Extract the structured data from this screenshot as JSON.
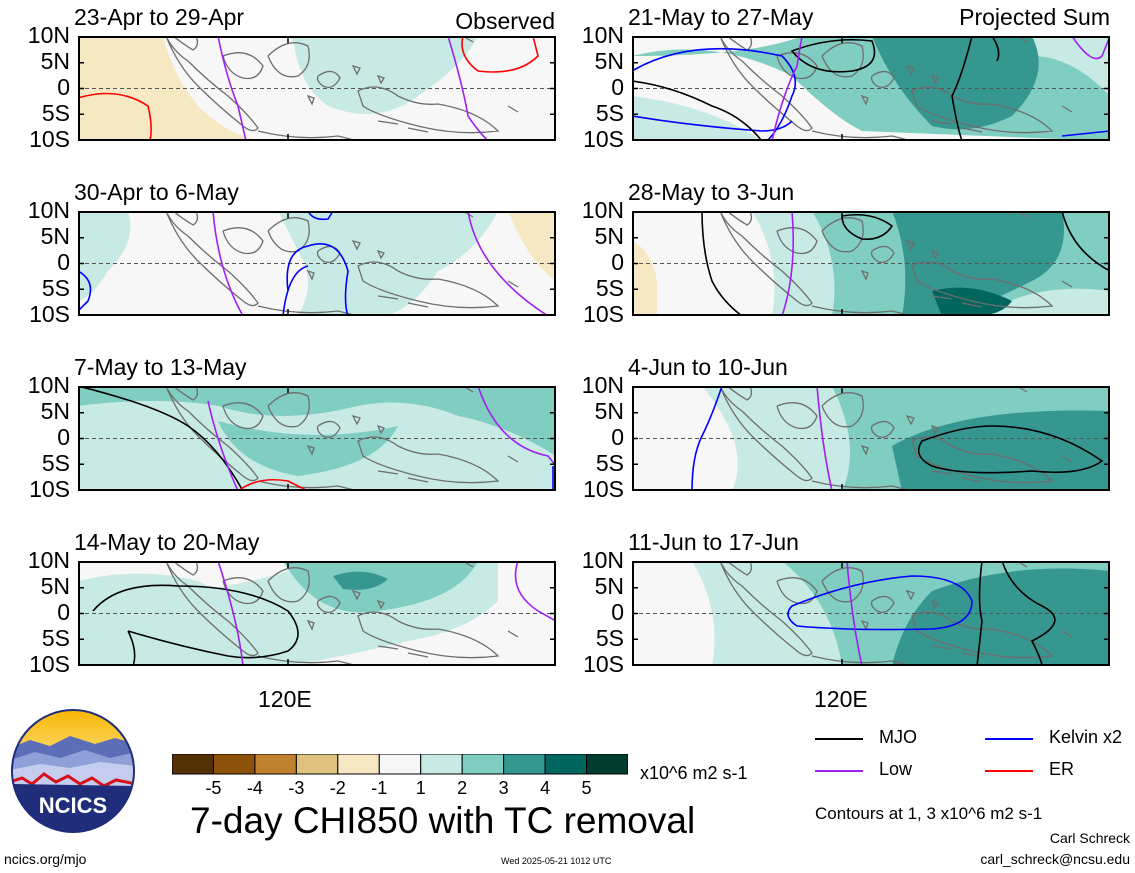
{
  "chart_data": {
    "type": "heatmap",
    "title": "7-day CHI850 with TC removal",
    "units": "x10^6 m2 s-1",
    "y_ticks": [
      "10N",
      "5N",
      "0",
      "5S",
      "10S"
    ],
    "x_tick": "120E",
    "colorbar": {
      "labels": [
        "-5",
        "-4",
        "-3",
        "-2",
        "-1",
        "1",
        "2",
        "3",
        "4",
        "5"
      ],
      "colors": [
        "#543005",
        "#8c510a",
        "#bf812d",
        "#dfc27d",
        "#f6e8c3",
        "#f7f7f7",
        "#c7eae5",
        "#80cdc1",
        "#35978f",
        "#01665e",
        "#003c30"
      ]
    },
    "column_titles": {
      "left": "Observed",
      "right": "Projected Sum"
    },
    "panels": [
      {
        "period": "23-Apr to 29-Apr",
        "col": "left"
      },
      {
        "period": "30-Apr to 6-May",
        "col": "left"
      },
      {
        "period": "7-May to 13-May",
        "col": "left"
      },
      {
        "period": "14-May to 20-May",
        "col": "left"
      },
      {
        "period": "21-May to 27-May",
        "col": "right"
      },
      {
        "period": "28-May to 3-Jun",
        "col": "right"
      },
      {
        "period": "4-Jun to 10-Jun",
        "col": "right"
      },
      {
        "period": "11-Jun to 17-Jun",
        "col": "right"
      }
    ],
    "legend": [
      {
        "name": "MJO",
        "color": "#000000"
      },
      {
        "name": "Kelvin x2",
        "color": "#0000ff"
      },
      {
        "name": "Low",
        "color": "#a020f0"
      },
      {
        "name": "ER",
        "color": "#ff0000"
      }
    ],
    "contour_note": "Contours at 1, 3 x10^6 m2 s-1"
  },
  "footer": {
    "logo_text": "NCICS",
    "url": "ncics.org/mjo",
    "timestamp": "Wed 2025-05-21 1012 UTC",
    "author": "Carl Schreck",
    "email": "carl_schreck@ncsu.edu"
  }
}
